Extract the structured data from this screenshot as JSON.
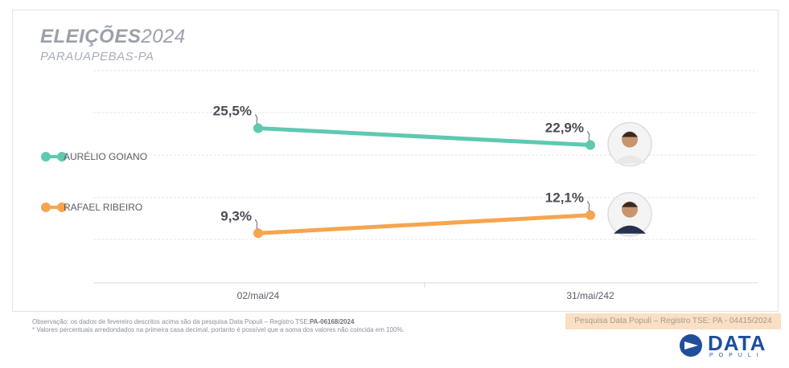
{
  "header": {
    "title_bold": "ELEIÇÕES",
    "title_year": "2024",
    "subtitle": "PARAUAPEBAS-PA"
  },
  "chart_data": {
    "type": "line",
    "x": [
      "02/mai/24",
      "31/mai/242"
    ],
    "ylim": [
      0,
      30
    ],
    "grid": true,
    "legend_position": "left",
    "series": [
      {
        "name": "AURÉLIO GOIANO",
        "color": "#5ec9b0",
        "values": [
          25.5,
          22.9
        ],
        "labels": [
          "25,5%",
          "22,9%"
        ]
      },
      {
        "name": "RAFAEL RIBEIRO",
        "color": "#f6a54f",
        "values": [
          9.3,
          12.1
        ],
        "labels": [
          "9,3%",
          "12,1%"
        ]
      }
    ]
  },
  "footnotes": {
    "line1_prefix": "Observação: os dados de fevereiro descritos acima são da pesquisa Data Populi – Registro TSE:",
    "line1_registro": "PA-06168/2024",
    "line2": "* Valores percentuais arredondados na primeira casa decimal, portanto é possível que a soma dos valores não coincida em 100%."
  },
  "registro_badge": "Pesquisa Data Populi – Registro TSE: PA - 04415/2024",
  "logo": {
    "word": "DATA",
    "sub": "POPULI",
    "color": "#1f4e9b"
  }
}
